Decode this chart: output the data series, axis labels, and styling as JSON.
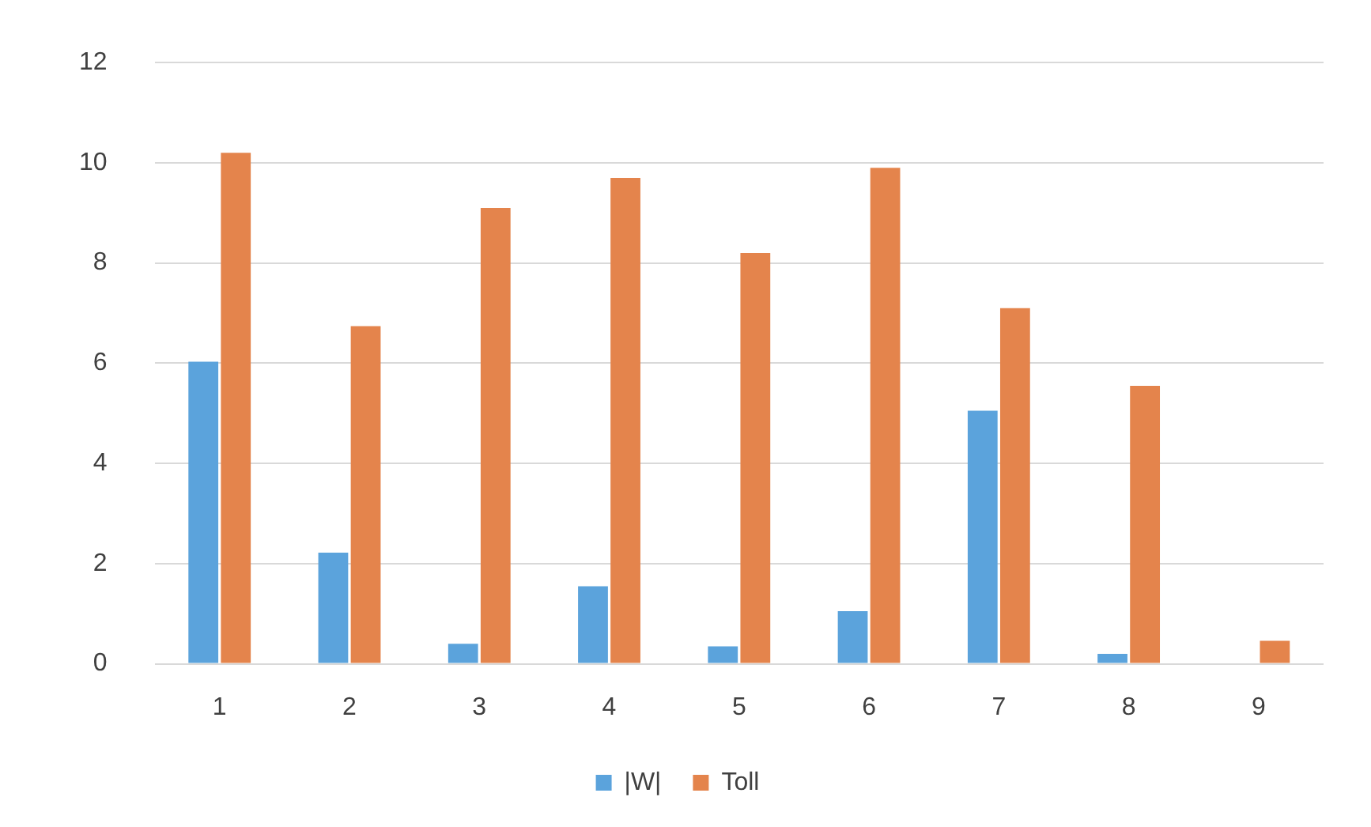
{
  "chart_data": {
    "type": "bar",
    "categories": [
      "1",
      "2",
      "3",
      "4",
      "5",
      "6",
      "7",
      "8",
      "9"
    ],
    "series": [
      {
        "name": "|W|",
        "color": "#5ba3dc",
        "values": [
          6.03,
          2.22,
          0.4,
          1.55,
          0.35,
          1.05,
          5.05,
          0.2,
          null
        ]
      },
      {
        "name": "Toll",
        "color": "#e4844c",
        "values": [
          10.2,
          6.74,
          9.1,
          9.7,
          8.2,
          9.9,
          7.1,
          5.55,
          0.46
        ]
      }
    ],
    "ylim": [
      0,
      12
    ],
    "yticks": [
      0,
      2,
      4,
      6,
      8,
      10,
      12
    ],
    "grid": "y",
    "legend": "bottom"
  }
}
